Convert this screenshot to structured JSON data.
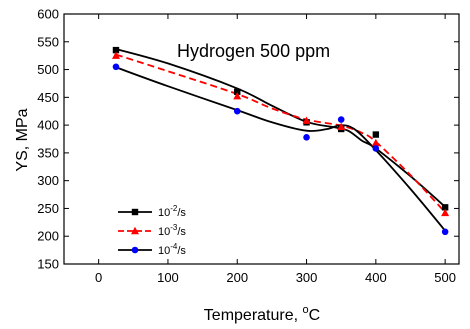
{
  "chart_data": {
    "type": "line",
    "annotation": "Hydrogen 500 ppm",
    "xlabel": {
      "text": "Temperature, ",
      "sup": "o",
      "unit": "C"
    },
    "ylabel": "YS, MPa",
    "xlim": [
      -50,
      520
    ],
    "ylim": [
      150,
      600
    ],
    "xticks": [
      0,
      100,
      200,
      300,
      400,
      500
    ],
    "yticks": [
      150,
      200,
      250,
      300,
      350,
      400,
      450,
      500,
      550,
      600
    ],
    "x": [
      25,
      200,
      300,
      350,
      400,
      500
    ],
    "legend_position": "bottom-left",
    "series": [
      {
        "name": "10-2/s",
        "base": "10",
        "exp": "-2",
        "suffix": "/s",
        "marker": "square",
        "color": "#000000",
        "line_color": "#000000",
        "dash": "solid",
        "values": [
          535,
          460,
          405,
          393,
          383,
          252
        ],
        "fit": [
          [
            25,
            537
          ],
          [
            100,
            511
          ],
          [
            200,
            466
          ],
          [
            250,
            435
          ],
          [
            300,
            406
          ],
          [
            340,
            396
          ],
          [
            360,
            390
          ],
          [
            380,
            372
          ],
          [
            400,
            358
          ],
          [
            450,
            308
          ],
          [
            500,
            253
          ]
        ]
      },
      {
        "name": "10-3/s",
        "base": "10",
        "exp": "-3",
        "suffix": "/s",
        "marker": "triangle",
        "color": "#ff0000",
        "line_color": "#ff0000",
        "dash": "dashed",
        "values": [
          525,
          452,
          408,
          397,
          368,
          242
        ],
        "fit": [
          [
            25,
            527
          ],
          [
            100,
            497
          ],
          [
            200,
            456
          ],
          [
            250,
            430
          ],
          [
            300,
            410
          ],
          [
            350,
            399
          ],
          [
            380,
            386
          ],
          [
            400,
            370
          ],
          [
            450,
            310
          ],
          [
            500,
            243
          ]
        ]
      },
      {
        "name": "10-4/s",
        "base": "10",
        "exp": "-4",
        "suffix": "/s",
        "marker": "circle",
        "color": "#0000ff",
        "line_color": "#000000",
        "dash": "solid",
        "values": [
          505,
          425,
          378,
          410,
          358,
          208
        ],
        "fit": [
          [
            25,
            504
          ],
          [
            100,
            470
          ],
          [
            200,
            427
          ],
          [
            250,
            405
          ],
          [
            300,
            390
          ],
          [
            330,
            393
          ],
          [
            350,
            400
          ],
          [
            370,
            392
          ],
          [
            400,
            355
          ],
          [
            450,
            285
          ],
          [
            500,
            210
          ]
        ]
      }
    ]
  }
}
